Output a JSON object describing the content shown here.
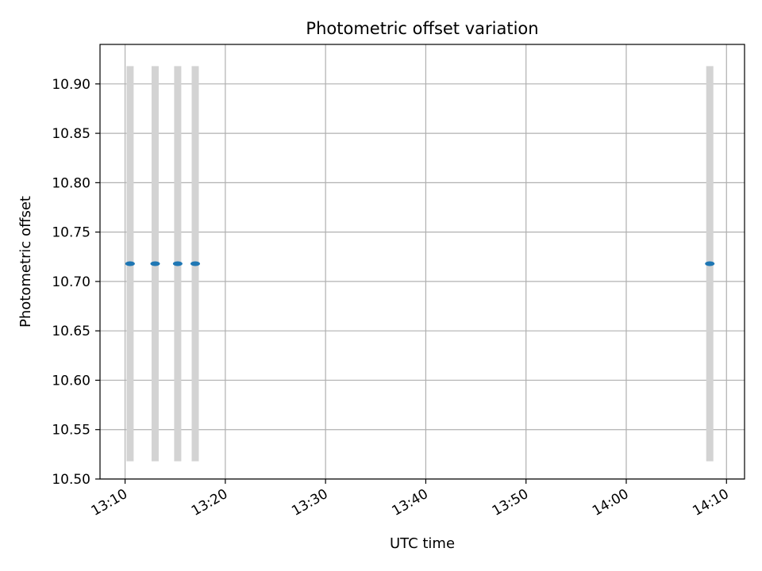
{
  "chart_data": {
    "type": "scatter",
    "title": "Photometric offset variation",
    "xlabel": "UTC time",
    "ylabel": "Photometric offset",
    "x_tick_labels": [
      "13:10",
      "13:20",
      "13:30",
      "13:40",
      "13:50",
      "14:00",
      "14:10"
    ],
    "x_tick_minutes": [
      0,
      10,
      20,
      30,
      40,
      50,
      60
    ],
    "xlim_minutes_after_13_10": [
      -2.5,
      61.8
    ],
    "y_ticks": [
      10.5,
      10.55,
      10.6,
      10.65,
      10.7,
      10.75,
      10.8,
      10.85,
      10.9
    ],
    "y_tick_labels": [
      "10.50",
      "10.55",
      "10.60",
      "10.65",
      "10.70",
      "10.75",
      "10.80",
      "10.85",
      "10.90"
    ],
    "ylim": [
      10.5,
      10.94
    ],
    "grid": true,
    "series": [
      {
        "color": "#1f77b4",
        "points": [
          {
            "x": "13:10:30",
            "y": 10.718
          },
          {
            "x": "13:13:00",
            "y": 10.718
          },
          {
            "x": "13:15:15",
            "y": 10.718
          },
          {
            "x": "13:17:00",
            "y": 10.718
          },
          {
            "x": "14:08:20",
            "y": 10.718
          }
        ]
      }
    ],
    "error_bars": {
      "color": "#d3d3d3",
      "low": 10.518,
      "high": 10.918
    }
  }
}
